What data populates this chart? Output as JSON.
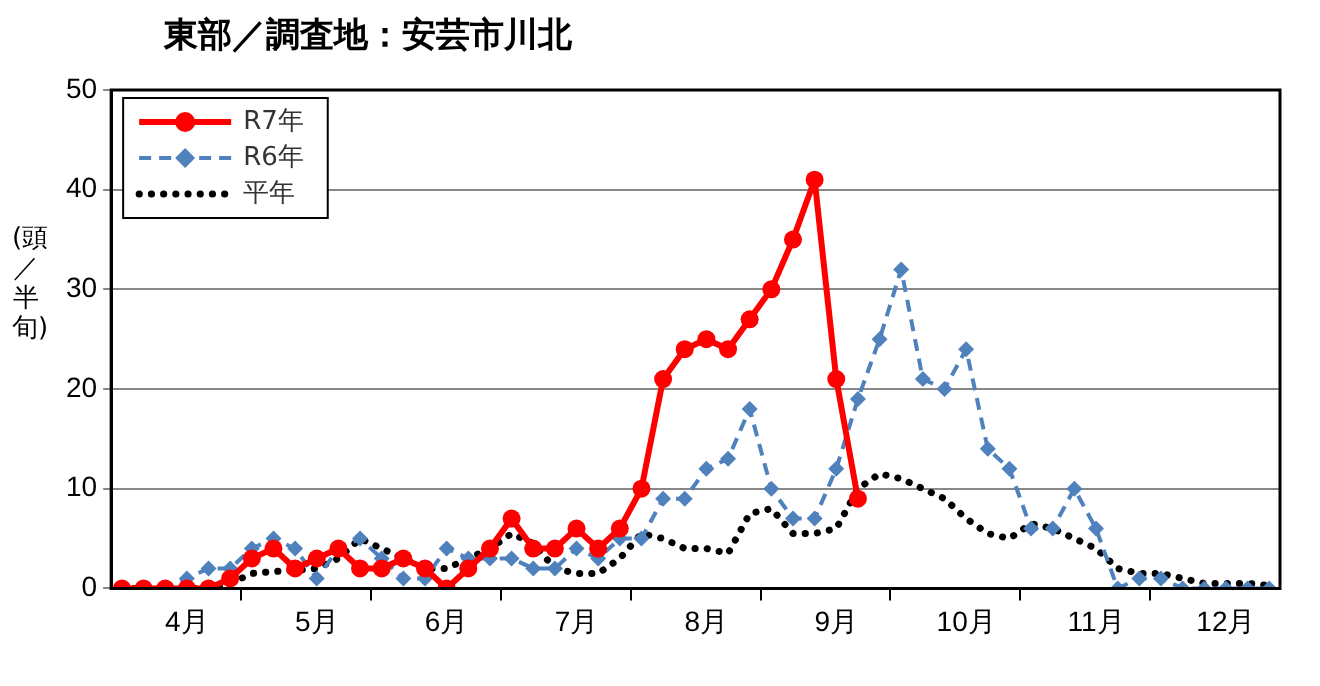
{
  "chart_data": {
    "type": "line",
    "title": "東部／調査地：安芸市川北",
    "ylabel": "(頭／半旬)",
    "categories": [
      null,
      null,
      null,
      "4月",
      null,
      null,
      null,
      null,
      null,
      "5月",
      null,
      null,
      null,
      null,
      null,
      "6月",
      null,
      null,
      null,
      null,
      null,
      "7月",
      null,
      null,
      null,
      null,
      null,
      "8月",
      null,
      null,
      null,
      null,
      null,
      "9月",
      null,
      null,
      null,
      null,
      null,
      "10月",
      null,
      null,
      null,
      null,
      null,
      "11月",
      null,
      null,
      null,
      null,
      null,
      "12月",
      null,
      null
    ],
    "ylim": [
      0,
      50
    ],
    "yticks": [
      0,
      10,
      20,
      30,
      40,
      50
    ],
    "grid": "y",
    "legend": "top left",
    "series": [
      {
        "name": "R7年",
        "color": "#ff0000",
        "marker": "circle",
        "line_style": "solid",
        "values": [
          0,
          0,
          0,
          0,
          0,
          1,
          3,
          4,
          2,
          3,
          4,
          2,
          2,
          3,
          2,
          0,
          2,
          4,
          7,
          4,
          4,
          6,
          4,
          6,
          10,
          21,
          24,
          25,
          24,
          27,
          30,
          35,
          41,
          21,
          9,
          null,
          null,
          null,
          null,
          null,
          null,
          null,
          null,
          null,
          null,
          null,
          null,
          null,
          null,
          null,
          null,
          null,
          null,
          null
        ]
      },
      {
        "name": "R6年",
        "color": "#4f81bd",
        "marker": "diamond",
        "line_style": "dashed",
        "values": [
          0,
          0,
          0,
          1,
          2,
          2,
          4,
          5,
          4,
          1,
          4,
          5,
          3,
          1,
          1,
          4,
          3,
          3,
          3,
          2,
          2,
          4,
          3,
          5,
          5,
          9,
          9,
          12,
          13,
          18,
          10,
          7,
          7,
          12,
          19,
          25,
          32,
          21,
          20,
          24,
          14,
          12,
          6,
          6,
          10,
          6,
          0,
          1,
          1,
          0,
          0,
          0,
          0,
          0
        ]
      },
      {
        "name": "平年",
        "color": "#000000",
        "marker": "none",
        "line_style": "dotted",
        "values": [
          0,
          0,
          0,
          0,
          0,
          0.5,
          1.5,
          1.7,
          1.8,
          2,
          3,
          5,
          4,
          3,
          2,
          2,
          3,
          4,
          5.5,
          4.5,
          2,
          1.5,
          1.5,
          3,
          5.5,
          5,
          4,
          4,
          3.5,
          7.5,
          8,
          5.5,
          5.5,
          6,
          10,
          11.5,
          11,
          10,
          9,
          7,
          5.5,
          5,
          6.5,
          6,
          5,
          4,
          2,
          1.5,
          1.5,
          1,
          0.5,
          0.5,
          0.5,
          0.3
        ]
      }
    ]
  }
}
